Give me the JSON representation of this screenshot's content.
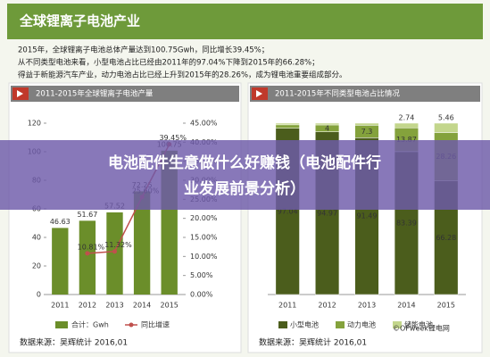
{
  "header": {
    "title": "全球锂离子电池产业",
    "bullets": [
      "2015年，全球锂离子电池总体产量达到100.75Gwh，同比增长39.45%；",
      "从不同类型电池来看，小型电池占比已经由2011年的97.04%下降到2015年的66.28%；",
      "得益于新能源汽车产业，动力电池占比已经上升到2015年的28.26%，成为锂电池重要组成部分。"
    ]
  },
  "overlay_title": [
    "电池配件生意做什么好赚钱（电池配件行",
    "业发展前景分析）"
  ],
  "watermark": "©OFweek锂电网",
  "chart_data": [
    {
      "type": "bar",
      "title": "2011-2015年全球锂离子电池产量",
      "categories": [
        "2011",
        "2012",
        "2013",
        "2014",
        "2015"
      ],
      "series": [
        {
          "name": "合计：Gwh",
          "color": "#6b8e2a",
          "values": [
            46.63,
            51.67,
            57.52,
            72.25,
            100.75
          ]
        },
        {
          "name": "同比增速",
          "color": "#c0504d",
          "axis": "y2",
          "values": [
            null,
            10.81,
            11.32,
            25.6,
            39.45
          ],
          "value_labels": [
            null,
            "10.81%",
            "11.32%",
            "25.60%",
            "39.45%"
          ]
        }
      ],
      "ylim": [
        0,
        120
      ],
      "yticks": [
        0,
        20,
        40,
        60,
        80,
        100,
        120
      ],
      "y2lim": [
        0,
        45
      ],
      "y2ticks": [
        {
          "value": 0,
          "label": "0.00%"
        },
        {
          "value": 5,
          "label": "5.00%"
        },
        {
          "value": 10,
          "label": "10.00%"
        },
        {
          "value": 15,
          "label": "15.00%"
        },
        {
          "value": 20,
          "label": "20.00%"
        },
        {
          "value": 25,
          "label": "25.00%"
        },
        {
          "value": 30,
          "label": "30.00%"
        },
        {
          "value": 35,
          "label": "35.00%"
        },
        {
          "value": 40,
          "label": "40.00%"
        },
        {
          "value": 45,
          "label": "45.00%"
        }
      ],
      "grid": false,
      "source": "数据来源：吴辉统计 2016,01"
    },
    {
      "type": "stacked_bar",
      "title": "2011-2015年不同类型电池占比情况",
      "categories": [
        "2011",
        "2012",
        "2013",
        "2014",
        "2015"
      ],
      "series": [
        {
          "name": "小型电池",
          "color": "#4b5d1c",
          "values": [
            97.04,
            94.97,
            91.49,
            83.39,
            66.28
          ]
        },
        {
          "name": "动力电池",
          "color": "#84a23c",
          "values": [
            2.0,
            4.0,
            7.3,
            13.87,
            28.26
          ]
        },
        {
          "name": "储能电池",
          "color": "#c3d68c",
          "values": [
            0.96,
            1.03,
            1.21,
            2.74,
            5.46
          ]
        }
      ],
      "ylim": [
        0,
        100
      ],
      "source": "数据来源：吴辉统计 2016,01"
    }
  ]
}
